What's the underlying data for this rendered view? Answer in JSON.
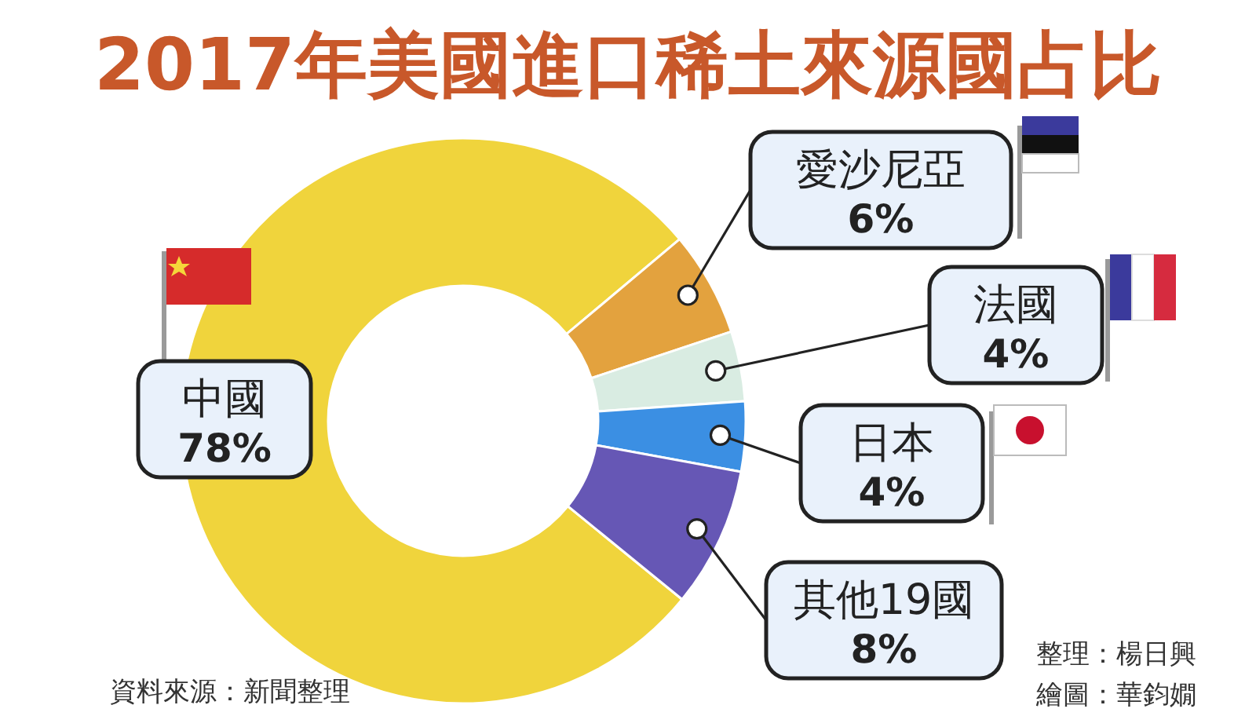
{
  "chart_data": {
    "type": "donut",
    "title": "2017年美國進口稀土來源國占比",
    "categories": [
      "中國",
      "愛沙尼亞",
      "法國",
      "日本",
      "其他19國"
    ],
    "values": [
      78,
      6,
      4,
      4,
      8
    ],
    "value_labels": [
      "78%",
      "6%",
      "4%",
      "4%",
      "8%"
    ],
    "colors": [
      "#f0d43c",
      "#e3a23e",
      "#d9ece2",
      "#3b8fe3",
      "#6657b5"
    ],
    "annotations": [
      "資料來源：新聞整理",
      "整理：楊日興",
      "繪圖：華鈞嫺"
    ]
  }
}
